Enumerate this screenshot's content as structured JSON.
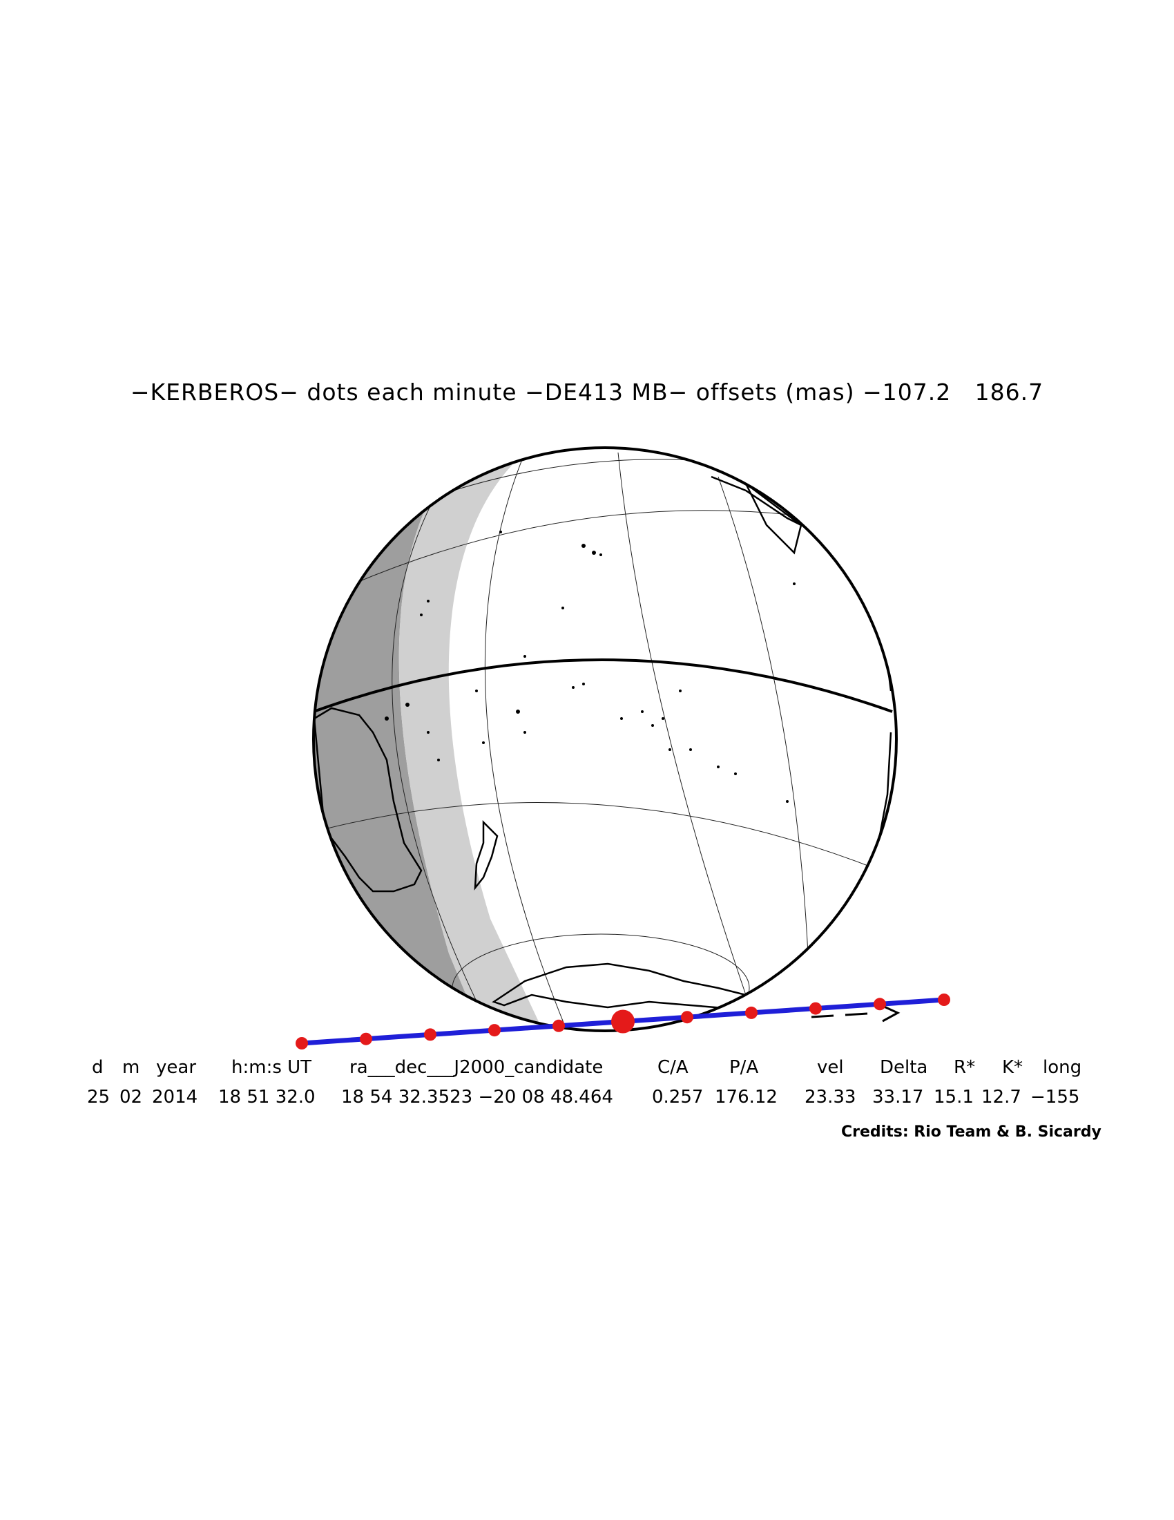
{
  "title": "−KERBEROS− dots each minute −DE413 MB− offsets (mas) −107.2   186.7",
  "table": {
    "headers": [
      "d",
      "m",
      "year",
      "h:m:s UT",
      "ra___dec___J2000_candidate",
      "C/A",
      "P/A",
      "vel",
      "Delta",
      "R*",
      "K*",
      "long"
    ],
    "values": [
      "25",
      "02",
      "2014",
      "18 51 32.0",
      "18 54 32.3523 −20 08 48.464",
      "0.257",
      "176.12",
      "23.33",
      "33.17",
      "15.1",
      "12.7",
      "−155"
    ]
  },
  "credits": "Credits: Rio Team & B. Sicardy",
  "colors": {
    "path": "#1f1fd8",
    "dots": "#e41a1a",
    "night": "#9e9e9e",
    "twilight": "#d0d0d0"
  },
  "path_dots": 11,
  "central_dot_index": 5,
  "direction_arrow": "--->"
}
